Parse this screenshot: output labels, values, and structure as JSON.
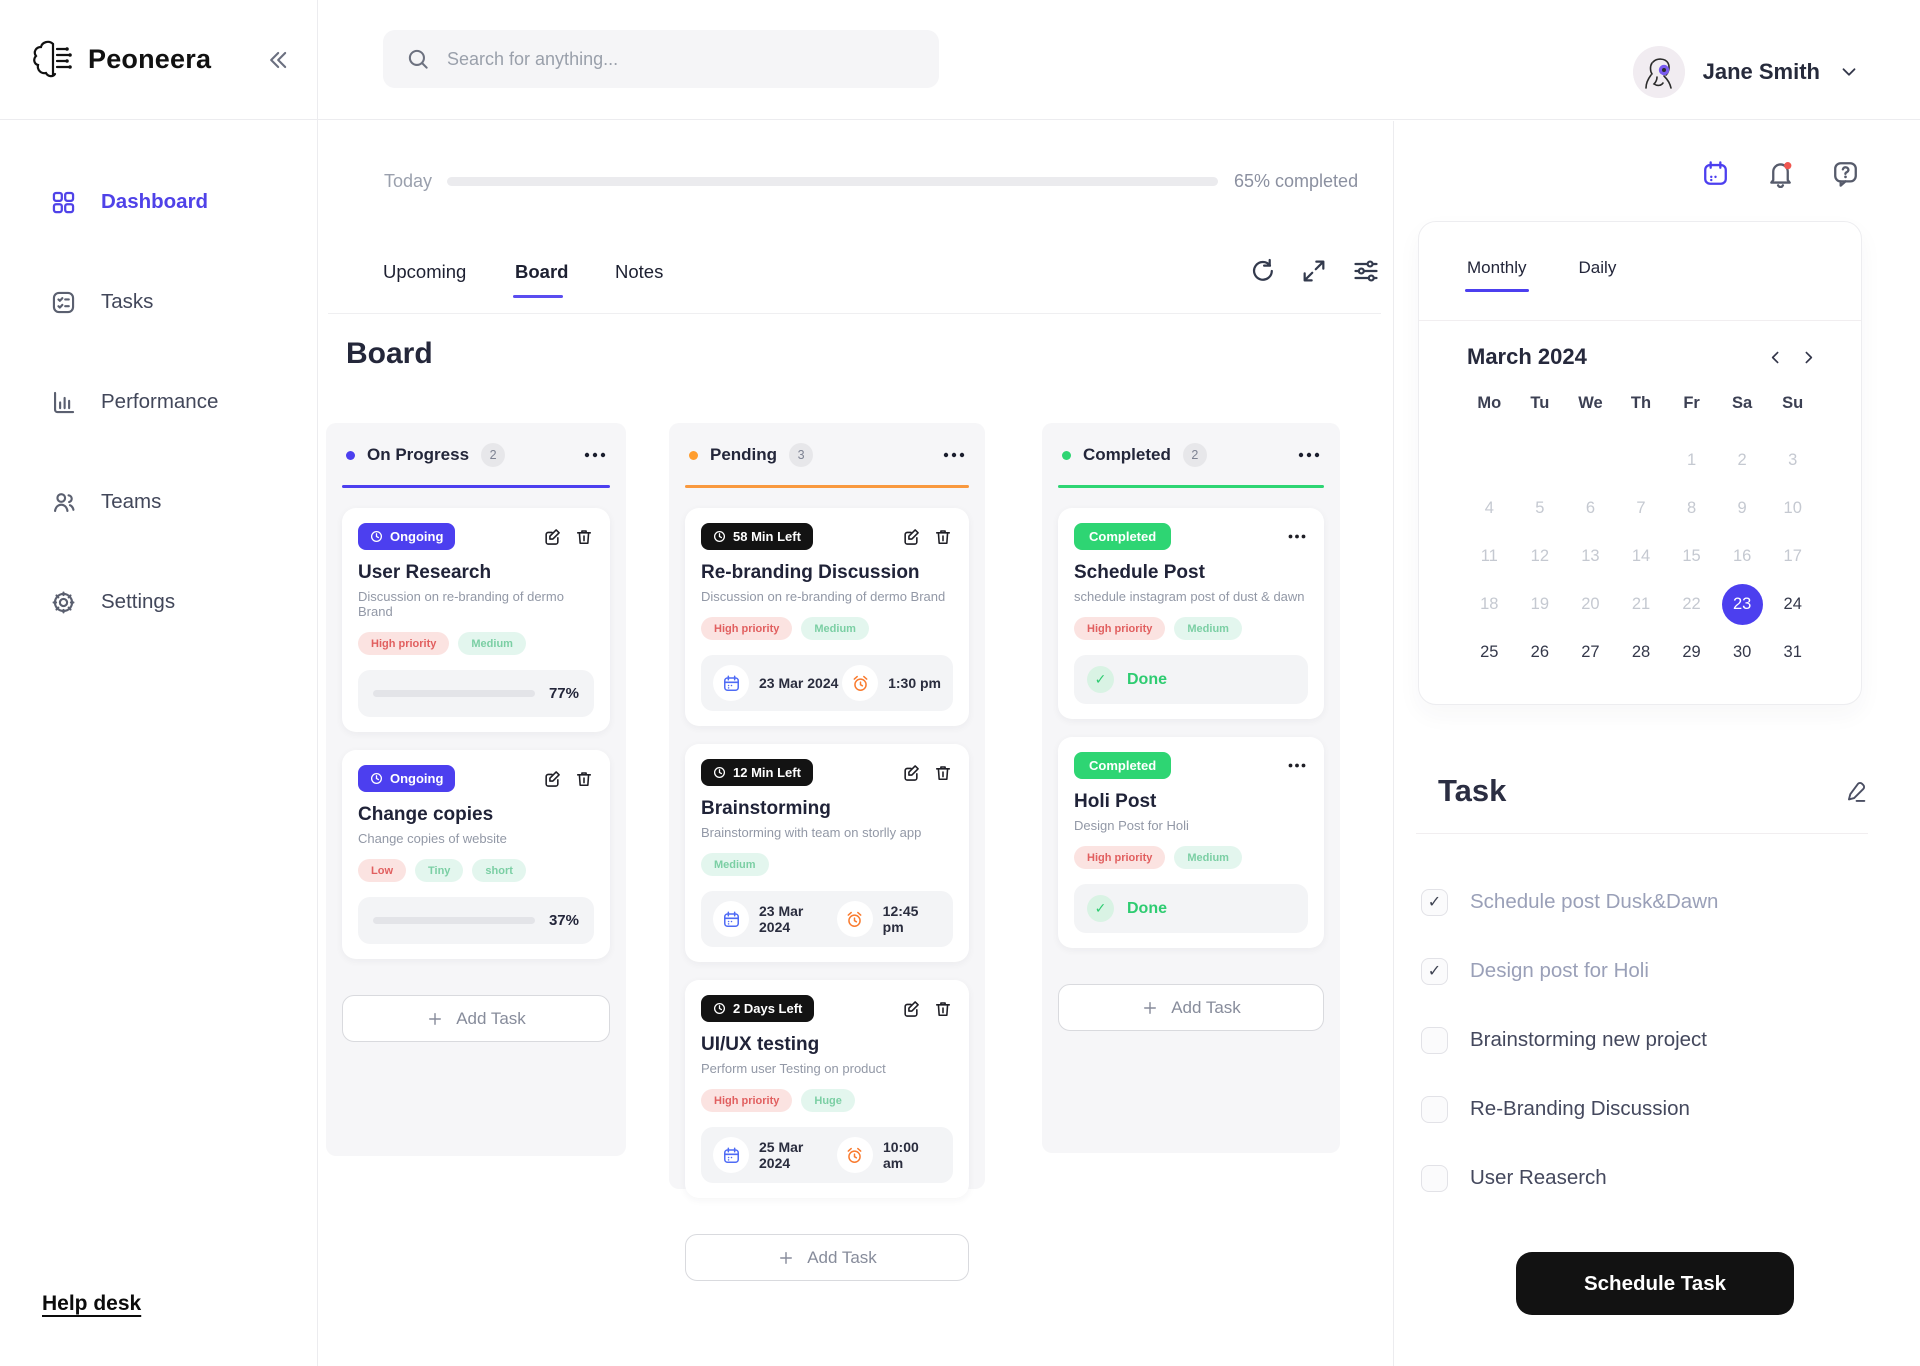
{
  "theme": {
    "primary": "#4c3fef",
    "orange": "#f9993f",
    "green": "#2ed573",
    "tag_red_bg": "#fbe3e1",
    "tag_red_text": "#e15f5f",
    "tag_green_bg": "#e3f6ee",
    "tag_green_text": "#7bcfa4"
  },
  "brand": {
    "name": "Peoneera"
  },
  "topbar": {
    "search_placeholder": "Search for anything...",
    "user_name": "Jane Smith"
  },
  "sidebar": {
    "items": [
      {
        "label": "Dashboard",
        "active": true
      },
      {
        "label": "Tasks"
      },
      {
        "label": "Performance"
      },
      {
        "label": "Teams"
      },
      {
        "label": "Settings"
      }
    ],
    "help_label": "Help desk"
  },
  "progress_header": {
    "label": "Today",
    "percent": 65,
    "completed_text": "65% completed"
  },
  "view_tabs": [
    {
      "label": "Upcoming"
    },
    {
      "label": "Board",
      "active": true
    },
    {
      "label": "Notes"
    }
  ],
  "board": {
    "title": "Board",
    "columns": [
      {
        "name": "On Progress",
        "count": "2",
        "add_label": "Add Task",
        "cards": [
          {
            "badge": "Ongoing",
            "title": "User Research",
            "subtitle": "Discussion on re-branding of dermo Brand",
            "tags": [
              {
                "label": "High priority",
                "type": "red"
              },
              {
                "label": "Medium",
                "type": "green"
              }
            ],
            "progress": 77,
            "progress_label": "77%"
          },
          {
            "badge": "Ongoing",
            "title": "Change copies",
            "subtitle": "Change copies of website",
            "tags": [
              {
                "label": "Low",
                "type": "red"
              },
              {
                "label": "Tiny",
                "type": "green"
              },
              {
                "label": "short",
                "type": "green"
              }
            ],
            "progress": 37,
            "progress_label": "37%"
          }
        ]
      },
      {
        "name": "Pending",
        "count": "3",
        "add_label": "Add Task",
        "cards": [
          {
            "badge": "58 Min Left",
            "title": "Re-branding Discussion",
            "subtitle": "Discussion on re-branding of dermo Brand",
            "tags": [
              {
                "label": "High priority",
                "type": "red"
              },
              {
                "label": "Medium",
                "type": "green"
              }
            ],
            "date": "23 Mar 2024",
            "time": "1:30 pm"
          },
          {
            "badge": "12 Min Left",
            "title": "Brainstorming",
            "subtitle": "Brainstorming with team on storlly app",
            "tags": [
              {
                "label": "Medium",
                "type": "green"
              }
            ],
            "date": "23 Mar 2024",
            "time": "12:45 pm"
          },
          {
            "badge": "2 Days Left",
            "title": "UI/UX testing",
            "subtitle": "Perform user Testing on product",
            "tags": [
              {
                "label": "High priority",
                "type": "red"
              },
              {
                "label": "Huge",
                "type": "green"
              }
            ],
            "date": "25 Mar 2024",
            "time": "10:00 am"
          }
        ]
      },
      {
        "name": "Completed",
        "count": "2",
        "add_label": "Add Task",
        "cards": [
          {
            "badge": "Completed",
            "title": "Schedule Post",
            "subtitle": "schedule instagram post of dust & dawn",
            "tags": [
              {
                "label": "High priority",
                "type": "red"
              },
              {
                "label": "Medium",
                "type": "green"
              }
            ],
            "done_label": "Done"
          },
          {
            "badge": "Completed",
            "title": "Holi Post",
            "subtitle": "Design Post for Holi",
            "tags": [
              {
                "label": "High priority",
                "type": "red"
              },
              {
                "label": "Medium",
                "type": "green"
              }
            ],
            "done_label": "Done"
          }
        ]
      }
    ]
  },
  "calendar": {
    "tabs": [
      {
        "label": "Monthly",
        "active": true
      },
      {
        "label": "Daily"
      }
    ],
    "month_label": "March 2024",
    "weekdays": [
      "Mo",
      "Tu",
      "We",
      "Th",
      "Fr",
      "Sa",
      "Su"
    ],
    "lead_blanks": 4,
    "num_days": 31,
    "muted_through": 22,
    "selected_day": 23
  },
  "tasks_panel": {
    "title": "Task",
    "items": [
      {
        "label": "Schedule post Dusk&Dawn",
        "checked": true
      },
      {
        "label": "Design post for Holi",
        "checked": true
      },
      {
        "label": "Brainstorming new project",
        "checked": false
      },
      {
        "label": "Re-Branding Discussion",
        "checked": false
      },
      {
        "label": "User Reaserch",
        "checked": false
      }
    ],
    "button_label": "Schedule Task"
  }
}
